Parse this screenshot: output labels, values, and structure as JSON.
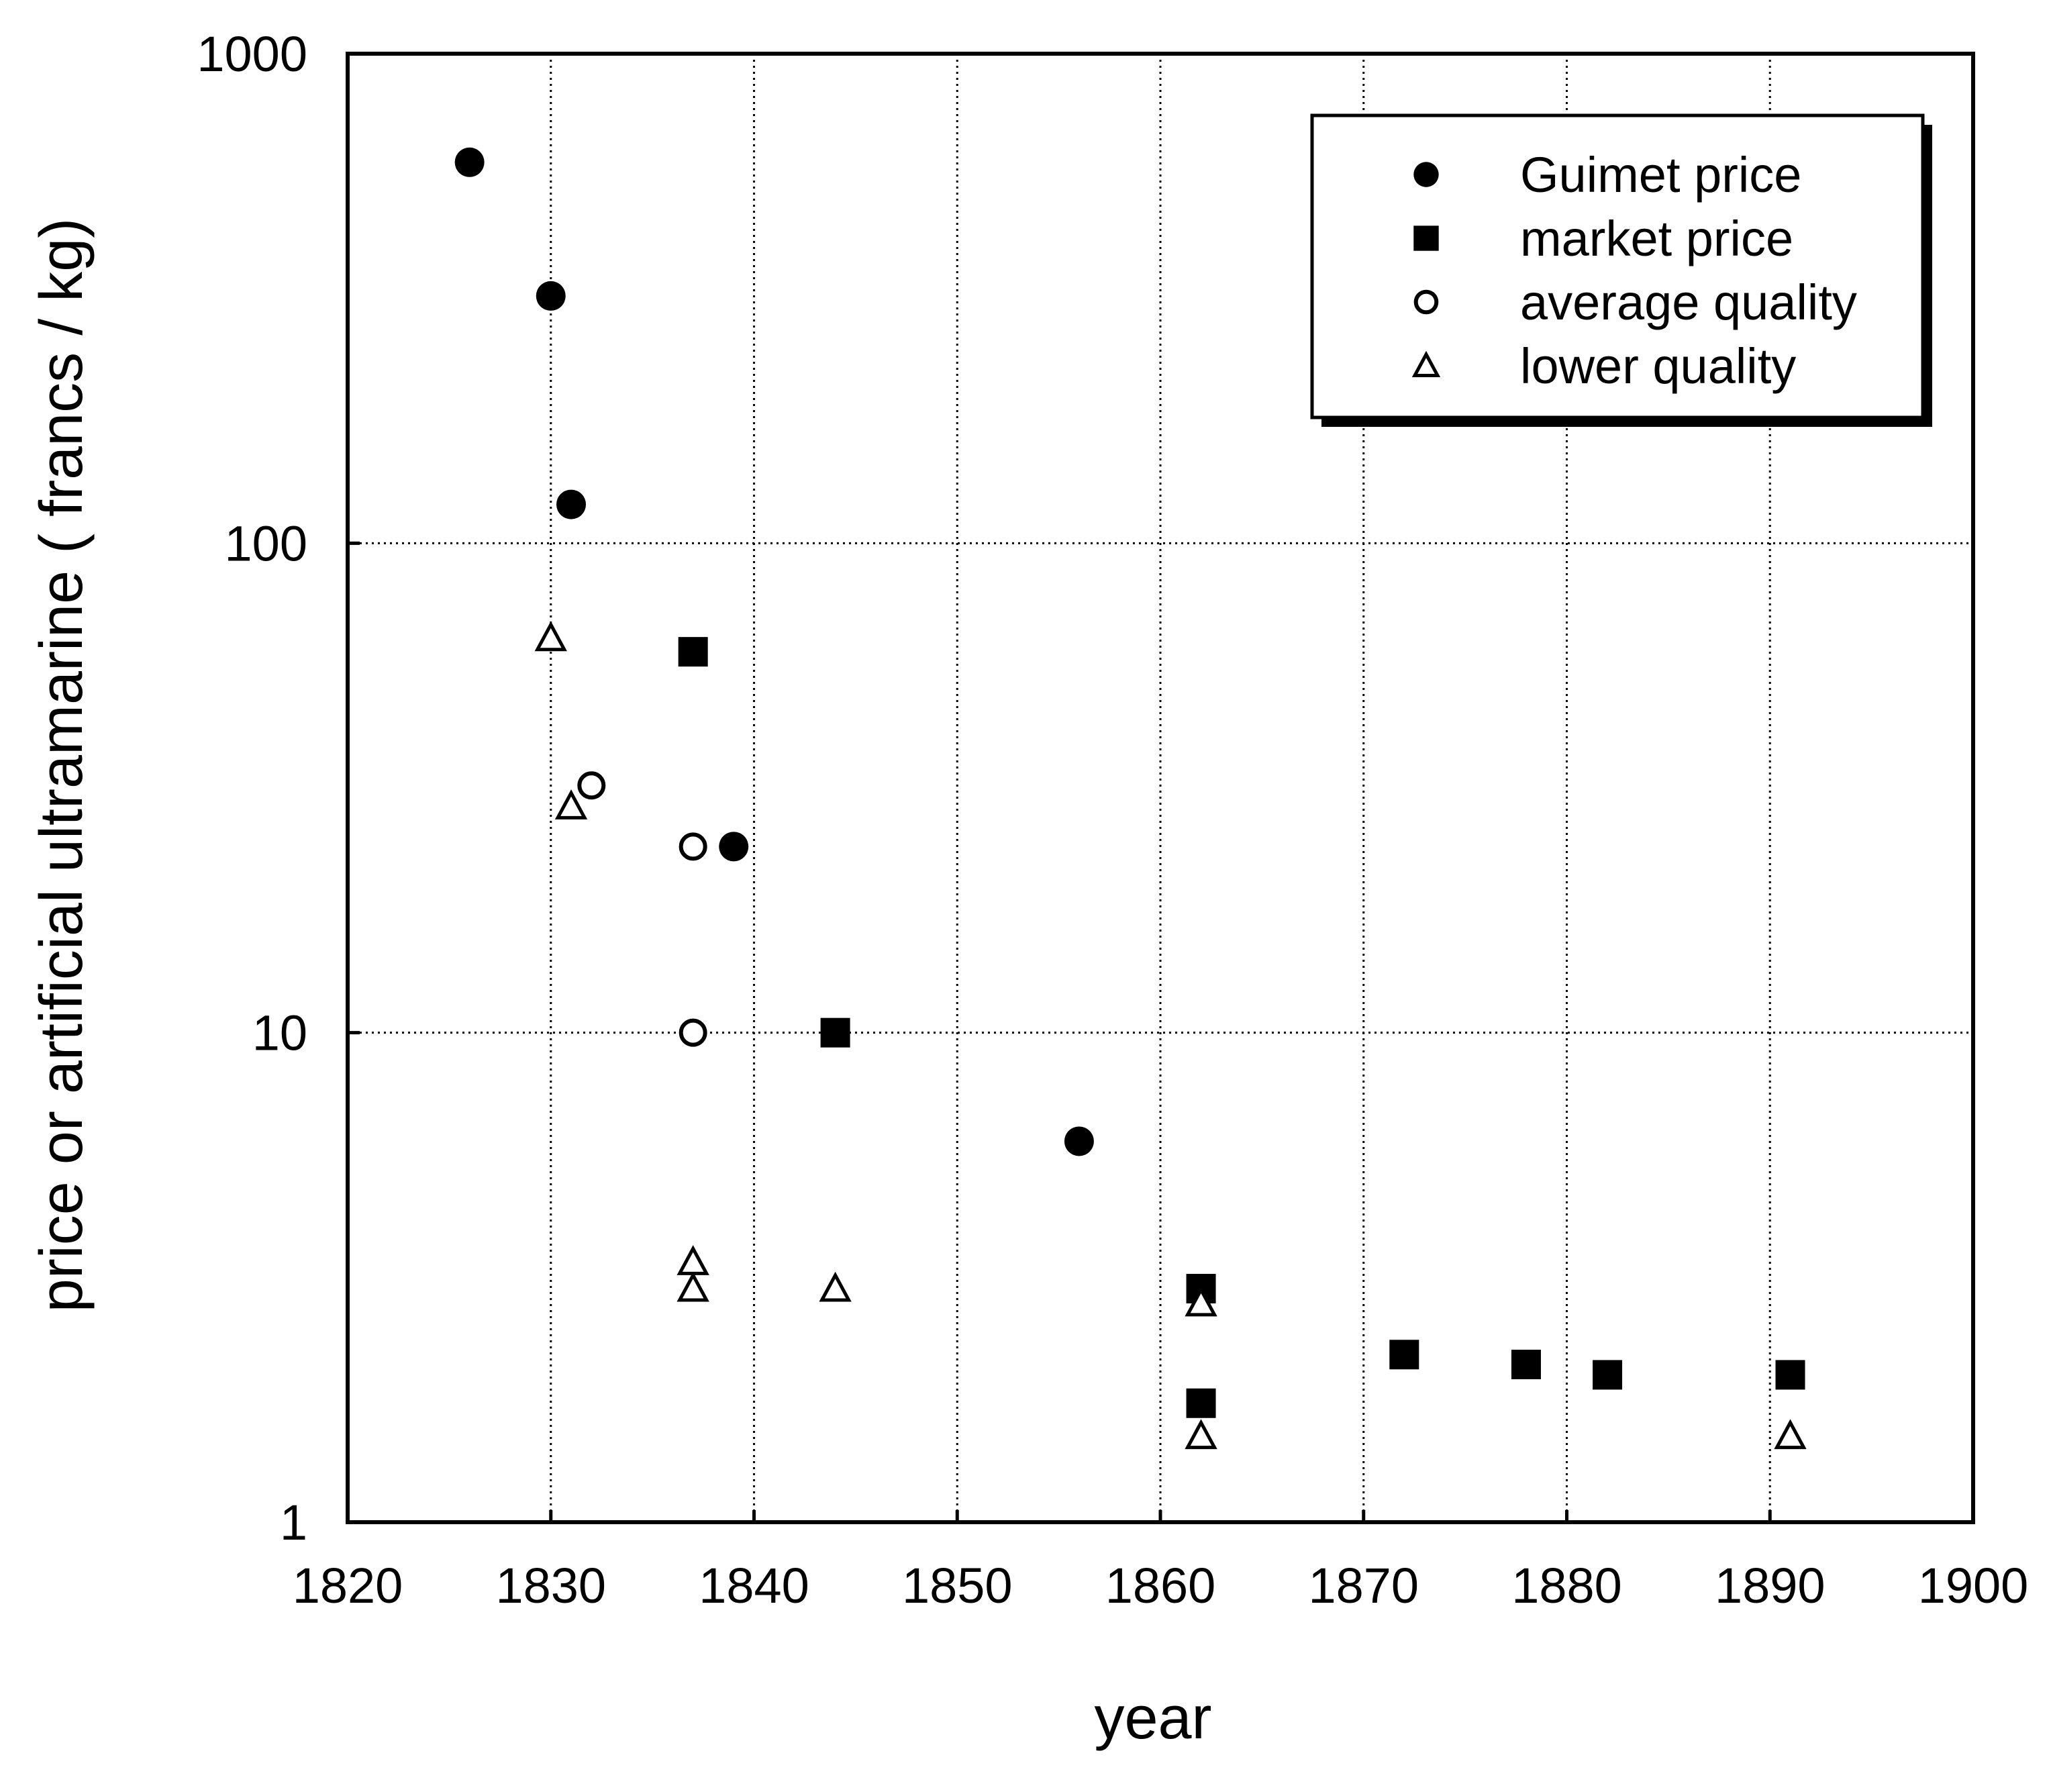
{
  "chart_data": {
    "type": "scatter",
    "title": "",
    "xlabel": "year",
    "ylabel": "price or artificial ultramarine   ( francs / kg)",
    "xlim": [
      1820,
      1900
    ],
    "ylim": [
      1,
      1000
    ],
    "yscale": "log",
    "x_ticks": [
      1820,
      1830,
      1840,
      1850,
      1860,
      1870,
      1880,
      1890,
      1900
    ],
    "x_tick_labels": [
      "1820",
      "1830",
      "1840",
      "1850",
      "1860",
      "1870",
      "1880",
      "1890",
      "1900"
    ],
    "y_ticks": [
      1,
      10,
      100,
      1000
    ],
    "y_tick_labels": [
      "1",
      "10",
      "100",
      "1000"
    ],
    "grid": true,
    "grid_style": "dotted",
    "legend_position": "top-right",
    "series": [
      {
        "name": "Guimet price",
        "marker": "filled-circle",
        "points": [
          {
            "x": 1826,
            "y": 600
          },
          {
            "x": 1830,
            "y": 320
          },
          {
            "x": 1831,
            "y": 120
          },
          {
            "x": 1839,
            "y": 24
          },
          {
            "x": 1856,
            "y": 6
          }
        ]
      },
      {
        "name": "market price",
        "marker": "filled-square",
        "points": [
          {
            "x": 1837,
            "y": 60
          },
          {
            "x": 1844,
            "y": 10
          },
          {
            "x": 1862,
            "y": 3
          },
          {
            "x": 1862,
            "y": 1.75
          },
          {
            "x": 1872,
            "y": 2.2
          },
          {
            "x": 1878,
            "y": 2.1
          },
          {
            "x": 1882,
            "y": 2.0
          },
          {
            "x": 1891,
            "y": 2.0
          }
        ]
      },
      {
        "name": "average quality",
        "marker": "open-circle",
        "points": [
          {
            "x": 1832,
            "y": 32
          },
          {
            "x": 1837,
            "y": 24
          },
          {
            "x": 1837,
            "y": 10
          }
        ]
      },
      {
        "name": "lower quality",
        "marker": "open-triangle",
        "points": [
          {
            "x": 1830,
            "y": 64
          },
          {
            "x": 1831,
            "y": 29
          },
          {
            "x": 1837,
            "y": 3.4
          },
          {
            "x": 1837,
            "y": 3.0
          },
          {
            "x": 1844,
            "y": 3.0
          },
          {
            "x": 1862,
            "y": 2.8
          },
          {
            "x": 1862,
            "y": 1.5
          },
          {
            "x": 1891,
            "y": 1.5
          }
        ]
      }
    ]
  }
}
